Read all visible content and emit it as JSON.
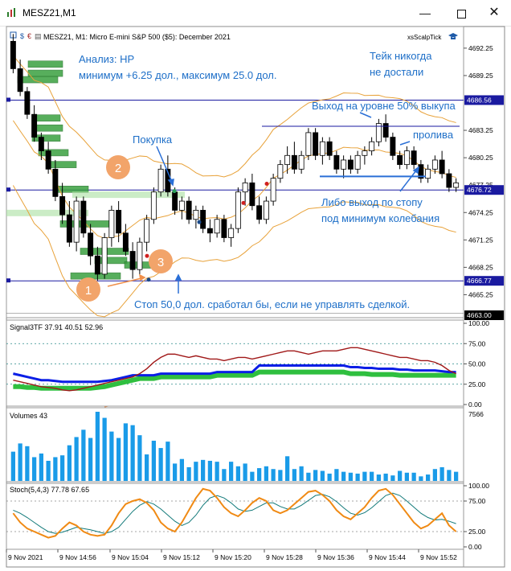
{
  "window": {
    "title": "MESZ21,M1",
    "min_icon": "minimize-icon",
    "max_icon": "maximize-icon",
    "close_icon": "close-icon"
  },
  "chart_header": {
    "symbol": "MESZ21, M1:  Micro E-mini S&P 500 ($5): December 2021",
    "indicator_tag": "xsScalpTick"
  },
  "price_axis": {
    "ticks": [
      "4692.25",
      "4689.25",
      "4683.25",
      "4680.25",
      "4674.25",
      "4671.25",
      "4668.25",
      "4665.25"
    ],
    "badges": [
      {
        "label": "4686.56",
        "color": "#1a1aa0"
      },
      {
        "label": "4676.72",
        "color": "#1a1aa0"
      },
      {
        "label": "4666.77",
        "color": "#1a1aa0"
      },
      {
        "label": "4663.00",
        "color": "#000000"
      }
    ],
    "partial_tick": "4677.25"
  },
  "annotations": {
    "analysis_line1": "Анализ: НР",
    "analysis_line2": "минимум +6.25 дол., максимум 25.0 дол.",
    "take_line1": "Тейк никогда",
    "take_line2": "не достали",
    "exit50": "Выход на уровне 50% выкупа",
    "buy": "Покупка",
    "breakout": "пролива",
    "alt_exit1": "Либо выход по стопу",
    "alt_exit2": "под минимум колебания",
    "stop": "Стоп 50,0 дол. сработал бы, если не управлять сделкой.",
    "circle1": "1",
    "circle2": "2",
    "circle3": "3"
  },
  "signal_panel": {
    "label": "Signal3TF 37.91 40.51 52.96",
    "ticks": [
      "100.00",
      "75.00",
      "50.00",
      "25.00",
      "0.00"
    ]
  },
  "volume_panel": {
    "label": "Volumes 43",
    "ticks": [
      "7566"
    ]
  },
  "stoch_panel": {
    "label": "Stoch(5,4,3) 77.78 67.65",
    "ticks": [
      "100.00",
      "75.00",
      "25.00",
      "0.00"
    ]
  },
  "time_axis": [
    "9 Nov 2021",
    "9 Nov 14:56",
    "9 Nov 15:04",
    "9 Nov 15:12",
    "9 Nov 15:20",
    "9 Nov 15:28",
    "9 Nov 15:36",
    "9 Nov 15:44",
    "9 Nov 15:52"
  ],
  "chart_data": {
    "type": "line",
    "title": "MESZ21, M1:  Micro E-mini S&P 500 ($5): December 2021",
    "price_range": [
      4663.0,
      4694.0
    ],
    "candles": [
      [
        4693.0,
        4693.8,
        4689.5,
        4690.0
      ],
      [
        4690.0,
        4691.0,
        4687.0,
        4687.5
      ],
      [
        4687.5,
        4688.0,
        4684.5,
        4685.0
      ],
      [
        4685.0,
        4686.0,
        4682.0,
        4682.5
      ],
      [
        4682.5,
        4683.0,
        4680.0,
        4681.0
      ],
      [
        4681.0,
        4682.0,
        4678.5,
        4679.0
      ],
      [
        4679.0,
        4680.0,
        4675.5,
        4676.0
      ],
      [
        4676.0,
        4677.5,
        4673.0,
        4674.0
      ],
      [
        4674.0,
        4675.5,
        4670.5,
        4671.0
      ],
      [
        4671.0,
        4676.0,
        4670.0,
        4675.5
      ],
      [
        4675.5,
        4676.0,
        4671.5,
        4672.0
      ],
      [
        4672.0,
        4673.0,
        4668.5,
        4669.5
      ],
      [
        4669.5,
        4670.5,
        4666.8,
        4667.5
      ],
      [
        4667.5,
        4672.0,
        4667.0,
        4671.5
      ],
      [
        4671.5,
        4675.0,
        4670.5,
        4674.5
      ],
      [
        4674.5,
        4675.5,
        4671.0,
        4672.0
      ],
      [
        4672.0,
        4673.0,
        4669.5,
        4670.0
      ],
      [
        4670.0,
        4671.0,
        4667.0,
        4668.0
      ],
      [
        4668.0,
        4671.5,
        4667.5,
        4671.0
      ],
      [
        4671.0,
        4674.0,
        4670.0,
        4673.5
      ],
      [
        4673.5,
        4677.0,
        4673.0,
        4676.5
      ],
      [
        4676.5,
        4679.5,
        4676.0,
        4679.0
      ],
      [
        4679.0,
        4680.5,
        4676.0,
        4676.5
      ],
      [
        4676.5,
        4677.0,
        4674.0,
        4674.5
      ],
      [
        4674.5,
        4676.0,
        4673.5,
        4675.5
      ],
      [
        4675.5,
        4676.0,
        4673.0,
        4673.5
      ],
      [
        4673.5,
        4675.0,
        4672.5,
        4674.5
      ],
      [
        4674.5,
        4675.0,
        4672.0,
        4672.5
      ],
      [
        4672.5,
        4673.5,
        4671.0,
        4672.0
      ],
      [
        4672.0,
        4674.0,
        4671.5,
        4673.5
      ],
      [
        4673.5,
        4674.0,
        4671.0,
        4671.5
      ],
      [
        4671.5,
        4673.0,
        4670.5,
        4672.5
      ],
      [
        4672.5,
        4677.0,
        4672.0,
        4676.5
      ],
      [
        4676.5,
        4678.0,
        4675.0,
        4677.5
      ],
      [
        4677.5,
        4678.5,
        4674.5,
        4675.0
      ],
      [
        4675.0,
        4676.0,
        4673.0,
        4673.5
      ],
      [
        4673.5,
        4676.0,
        4673.0,
        4675.5
      ],
      [
        4675.5,
        4678.5,
        4675.0,
        4678.0
      ],
      [
        4678.0,
        4680.0,
        4677.5,
        4679.5
      ],
      [
        4679.5,
        4681.5,
        4678.5,
        4680.5
      ],
      [
        4680.5,
        4682.0,
        4678.5,
        4679.0
      ],
      [
        4679.0,
        4681.0,
        4678.5,
        4680.5
      ],
      [
        4680.5,
        4683.5,
        4680.0,
        4683.0
      ],
      [
        4683.0,
        4683.5,
        4680.0,
        4680.5
      ],
      [
        4680.5,
        4682.5,
        4679.5,
        4682.0
      ],
      [
        4682.0,
        4682.5,
        4680.0,
        4680.5
      ],
      [
        4680.5,
        4681.0,
        4678.5,
        4679.0
      ],
      [
        4679.0,
        4680.5,
        4678.0,
        4680.0
      ],
      [
        4680.0,
        4680.5,
        4678.5,
        4679.0
      ],
      [
        4679.0,
        4681.0,
        4678.5,
        4680.5
      ],
      [
        4680.5,
        4681.5,
        4679.5,
        4681.0
      ],
      [
        4681.0,
        4682.5,
        4680.5,
        4682.0
      ],
      [
        4682.0,
        4684.5,
        4681.5,
        4684.0
      ],
      [
        4684.0,
        4685.0,
        4682.0,
        4682.5
      ],
      [
        4682.5,
        4683.0,
        4680.0,
        4680.5
      ],
      [
        4680.5,
        4681.0,
        4679.0,
        4679.5
      ],
      [
        4679.5,
        4681.5,
        4679.0,
        4681.0
      ],
      [
        4681.0,
        4681.5,
        4679.0,
        4679.5
      ],
      [
        4679.5,
        4680.0,
        4677.5,
        4678.0
      ],
      [
        4678.0,
        4679.5,
        4677.5,
        4679.0
      ],
      [
        4679.0,
        4680.5,
        4678.5,
        4680.0
      ],
      [
        4680.0,
        4681.0,
        4678.0,
        4678.5
      ],
      [
        4678.5,
        4679.0,
        4676.5,
        4677.0
      ],
      [
        4677.0,
        4678.0,
        4676.5,
        4677.5
      ]
    ],
    "levels": [
      {
        "name": "take",
        "price": 4686.56
      },
      {
        "name": "entry",
        "price": 4676.72
      },
      {
        "name": "stop",
        "price": 4666.77
      }
    ],
    "signal3tf": {
      "red": [
        30,
        28,
        26,
        24,
        22,
        21,
        20,
        18,
        17,
        18,
        20,
        22,
        24,
        26,
        28,
        30,
        32,
        34,
        38,
        44,
        52,
        58,
        62,
        62,
        60,
        58,
        60,
        58,
        56,
        56,
        54,
        56,
        58,
        58,
        56,
        58,
        60,
        62,
        64,
        66,
        66,
        64,
        62,
        64,
        66,
        66,
        66,
        68,
        70,
        70,
        68,
        66,
        64,
        62,
        60,
        58,
        58,
        56,
        54,
        54,
        52,
        48,
        42,
        38
      ],
      "blue": [
        38,
        36,
        34,
        32,
        30,
        30,
        29,
        28,
        28,
        28,
        28,
        28,
        28,
        29,
        30,
        32,
        34,
        36,
        36,
        36,
        36,
        38,
        38,
        38,
        38,
        38,
        38,
        38,
        38,
        40,
        40,
        40,
        40,
        40,
        40,
        48,
        48,
        48,
        48,
        48,
        48,
        48,
        48,
        48,
        48,
        48,
        48,
        48,
        46,
        46,
        45,
        45,
        44,
        44,
        44,
        43,
        43,
        42,
        42,
        42,
        42,
        41,
        40,
        40
      ],
      "green": [
        22,
        22,
        21,
        21,
        20,
        20,
        20,
        20,
        20,
        20,
        20,
        20,
        21,
        22,
        24,
        26,
        28,
        30,
        32,
        32,
        32,
        34,
        34,
        34,
        34,
        34,
        34,
        34,
        34,
        36,
        36,
        36,
        36,
        36,
        36,
        40,
        40,
        40,
        40,
        40,
        40,
        40,
        40,
        40,
        40,
        40,
        40,
        40,
        38,
        38,
        38,
        37,
        37,
        37,
        37,
        36,
        36,
        36,
        36,
        36,
        36,
        36,
        36,
        36
      ]
    },
    "volumes": [
      3200,
      4100,
      3800,
      2600,
      3000,
      2200,
      2600,
      2800,
      3900,
      4800,
      5600,
      4700,
      7566,
      6900,
      5400,
      4700,
      6300,
      6100,
      5000,
      2900,
      4400,
      3600,
      4300,
      1900,
      2400,
      1500,
      2100,
      2300,
      2200,
      2100,
      1300,
      2100,
      1600,
      1900,
      1000,
      1400,
      1600,
      1300,
      1200,
      2700,
      1300,
      1600,
      900,
      1200,
      1100,
      800,
      1300,
      1000,
      900,
      800,
      1000,
      1000,
      700,
      800,
      600,
      1100,
      900,
      900,
      500,
      700,
      1300,
      1500,
      1200,
      1000
    ],
    "stoch_main": [
      55,
      40,
      30,
      25,
      20,
      15,
      18,
      30,
      40,
      35,
      25,
      20,
      18,
      20,
      35,
      55,
      70,
      75,
      78,
      72,
      60,
      40,
      30,
      25,
      40,
      60,
      80,
      95,
      92,
      80,
      65,
      55,
      50,
      60,
      72,
      80,
      75,
      60,
      55,
      60,
      70,
      80,
      90,
      92,
      85,
      75,
      60,
      50,
      45,
      55,
      65,
      80,
      92,
      95,
      85,
      70,
      55,
      40,
      30,
      35,
      45,
      55,
      35,
      25
    ],
    "stoch_signal": [
      60,
      55,
      48,
      40,
      32,
      25,
      22,
      24,
      28,
      32,
      30,
      28,
      25,
      22,
      25,
      32,
      45,
      58,
      68,
      74,
      70,
      62,
      52,
      42,
      35,
      40,
      52,
      68,
      80,
      84,
      80,
      72,
      62,
      58,
      60,
      66,
      72,
      72,
      66,
      62,
      62,
      68,
      76,
      84,
      86,
      82,
      74,
      64,
      55,
      52,
      56,
      64,
      74,
      84,
      88,
      84,
      75,
      65,
      55,
      48,
      44,
      45,
      42,
      38
    ]
  }
}
